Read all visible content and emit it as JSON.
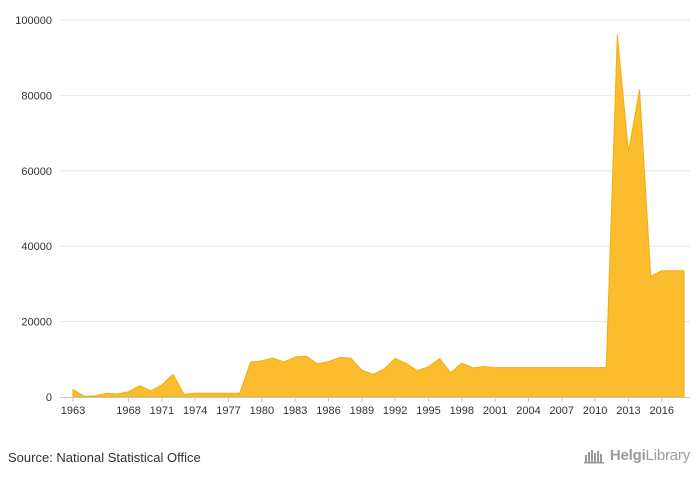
{
  "chart_data": {
    "type": "area",
    "title": "",
    "xlabel": "",
    "ylabel": "",
    "x": [
      1963,
      1964,
      1965,
      1966,
      1967,
      1968,
      1969,
      1970,
      1971,
      1972,
      1973,
      1974,
      1975,
      1976,
      1977,
      1978,
      1979,
      1980,
      1981,
      1982,
      1983,
      1984,
      1985,
      1986,
      1987,
      1988,
      1989,
      1990,
      1991,
      1992,
      1993,
      1994,
      1995,
      1996,
      1997,
      1998,
      1999,
      2000,
      2001,
      2002,
      2003,
      2004,
      2005,
      2006,
      2007,
      2008,
      2009,
      2010,
      2011,
      2012,
      2013,
      2014,
      2015,
      2016,
      2017,
      2018
    ],
    "values": [
      2000,
      200,
      300,
      1000,
      800,
      1400,
      3000,
      1600,
      3200,
      6000,
      700,
      1000,
      1000,
      1000,
      1000,
      1000,
      9300,
      9600,
      10300,
      9300,
      10600,
      10800,
      8800,
      9400,
      10500,
      10300,
      7100,
      6000,
      7400,
      10200,
      8900,
      7000,
      8000,
      10200,
      6400,
      9000,
      7700,
      8100,
      7800,
      7800,
      7800,
      7800,
      7800,
      7800,
      7800,
      7800,
      7800,
      7800,
      7800,
      96000,
      65000,
      81500,
      32000,
      33500,
      33500,
      33500
    ],
    "x_ticks": [
      "1963",
      "1968",
      "1971",
      "1974",
      "1977",
      "1980",
      "1983",
      "1986",
      "1989",
      "1992",
      "1995",
      "1998",
      "2001",
      "2004",
      "2007",
      "2010",
      "2013",
      "2016"
    ],
    "y_ticks": [
      "0",
      "20000",
      "40000",
      "60000",
      "80000",
      "100000"
    ],
    "ylim": [
      0,
      100000
    ],
    "grid": "horizontal",
    "legend": "none",
    "color": "#FBBC2E",
    "edge_color": "#F0AE10"
  },
  "footer": {
    "source": "Source: National Statistical Office",
    "logo_prefix": "Helgi",
    "logo_suffix": "Library"
  }
}
